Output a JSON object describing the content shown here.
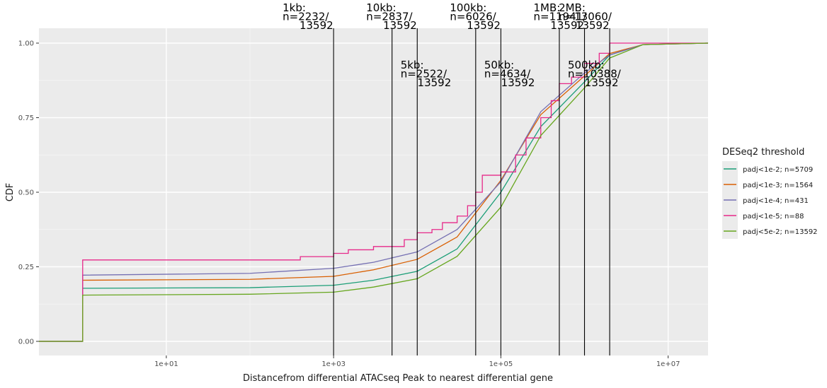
{
  "chart_data": {
    "type": "line",
    "title": "",
    "xlabel": "Distancefrom differential ATACseq Peak to nearest differential gene",
    "ylabel": "CDF",
    "x_scale": "log10",
    "xlim": [
      0.3,
      30000000
    ],
    "ylim": [
      0,
      1
    ],
    "x_ticks": [
      {
        "value": 10,
        "label": "1e+01"
      },
      {
        "value": 1000,
        "label": "1e+03"
      },
      {
        "value": 100000,
        "label": "1e+05"
      },
      {
        "value": 10000000,
        "label": "1e+07"
      }
    ],
    "y_ticks": [
      {
        "value": 0,
        "label": "0.00"
      },
      {
        "value": 0.25,
        "label": "0.25"
      },
      {
        "value": 0.5,
        "label": "0.50"
      },
      {
        "value": 0.75,
        "label": "0.75"
      },
      {
        "value": 1,
        "label": "1.00"
      }
    ],
    "grid": true,
    "legend": {
      "title": "DESeq2 threshold",
      "position": "right"
    },
    "series": [
      {
        "name": "padj<1e-2; n=5709",
        "color": "#1b9e77",
        "step": false,
        "x": [
          0.3,
          1,
          1,
          100,
          1000,
          3000,
          10000,
          30000,
          100000,
          300000,
          1000000,
          2000000,
          5000000,
          30000000
        ],
        "y": [
          0,
          0,
          0.178,
          0.18,
          0.188,
          0.205,
          0.235,
          0.31,
          0.5,
          0.72,
          0.87,
          0.96,
          0.995,
          1
        ]
      },
      {
        "name": "padj<1e-3; n=1564",
        "color": "#d95f02",
        "step": false,
        "x": [
          0.3,
          1,
          1,
          100,
          1000,
          3000,
          10000,
          30000,
          100000,
          300000,
          1000000,
          2000000,
          5000000,
          30000000
        ],
        "y": [
          0,
          0,
          0.205,
          0.208,
          0.218,
          0.24,
          0.275,
          0.35,
          0.54,
          0.76,
          0.89,
          0.965,
          0.995,
          1
        ]
      },
      {
        "name": "padj<1e-4; n=431",
        "color": "#7570b3",
        "step": false,
        "x": [
          0.3,
          1,
          1,
          100,
          1000,
          3000,
          10000,
          30000,
          100000,
          300000,
          1000000,
          2000000,
          5000000,
          30000000
        ],
        "y": [
          0,
          0,
          0.222,
          0.228,
          0.245,
          0.265,
          0.3,
          0.375,
          0.535,
          0.77,
          0.9,
          0.96,
          0.995,
          1
        ]
      },
      {
        "name": "padj<1e-5; n=88",
        "color": "#e7298a",
        "step": true,
        "x": [
          0.3,
          1,
          1,
          400,
          1000,
          1500,
          3000,
          7000,
          10000,
          15000,
          20000,
          30000,
          40000,
          50000,
          60000,
          100000,
          150000,
          200000,
          300000,
          400000,
          500000,
          700000,
          1000000,
          1500000,
          2000000,
          30000000
        ],
        "y": [
          0,
          0,
          0.273,
          0.284,
          0.295,
          0.307,
          0.318,
          0.341,
          0.364,
          0.375,
          0.398,
          0.42,
          0.455,
          0.5,
          0.557,
          0.568,
          0.625,
          0.682,
          0.75,
          0.807,
          0.864,
          0.886,
          0.932,
          0.966,
          1,
          1
        ]
      },
      {
        "name": "padj<5e-2; n=13592",
        "color": "#66a61e",
        "step": false,
        "x": [
          0.3,
          1,
          1,
          100,
          1000,
          3000,
          10000,
          30000,
          100000,
          300000,
          1000000,
          2000000,
          5000000,
          30000000
        ],
        "y": [
          0,
          0,
          0.155,
          0.158,
          0.165,
          0.182,
          0.21,
          0.285,
          0.45,
          0.69,
          0.85,
          0.95,
          0.995,
          1
        ]
      }
    ],
    "annotations": [
      {
        "x": 1000,
        "lines": [
          "1kb:",
          "n=2232/",
          "     13592"
        ],
        "row": "top"
      },
      {
        "x": 5000,
        "lines": [
          "5kb:",
          "n=2522/",
          "     13592"
        ],
        "row": "mid"
      },
      {
        "x": 10000,
        "lines": [
          "10kb:",
          "n=2837/",
          "     13592"
        ],
        "row": "top"
      },
      {
        "x": 50000,
        "lines": [
          "50kb:",
          "n=4634/",
          "     13592"
        ],
        "row": "mid"
      },
      {
        "x": 100000,
        "lines": [
          "100kb:",
          "n=6026/",
          "     13592"
        ],
        "row": "top"
      },
      {
        "x": 500000,
        "lines": [
          "500kb:",
          "n=10388/",
          "     13592"
        ],
        "row": "mid"
      },
      {
        "x": 1000000,
        "lines": [
          "1MB:",
          "n=11941/",
          "     13592"
        ],
        "row": "top"
      },
      {
        "x": 2000000,
        "lines": [
          "2MB:",
          "n=13060/",
          "     13592"
        ],
        "row": "top"
      }
    ]
  }
}
